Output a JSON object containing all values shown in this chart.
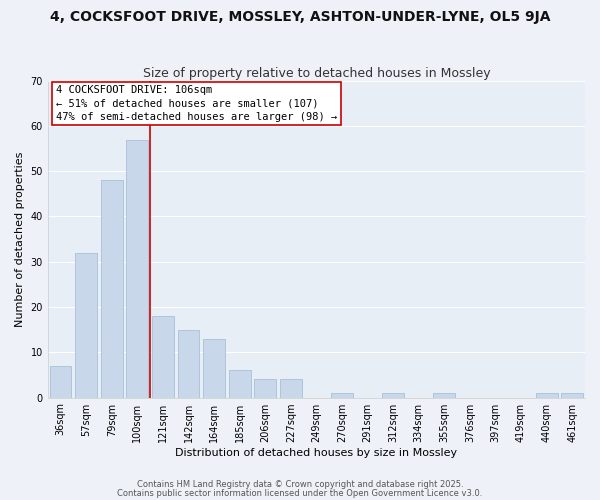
{
  "title": "4, COCKSFOOT DRIVE, MOSSLEY, ASHTON-UNDER-LYNE, OL5 9JA",
  "subtitle": "Size of property relative to detached houses in Mossley",
  "xlabel": "Distribution of detached houses by size in Mossley",
  "ylabel": "Number of detached properties",
  "bar_color": "#c8d8ea",
  "bar_edge_color": "#a8c0d8",
  "categories": [
    "36sqm",
    "57sqm",
    "79sqm",
    "100sqm",
    "121sqm",
    "142sqm",
    "164sqm",
    "185sqm",
    "206sqm",
    "227sqm",
    "249sqm",
    "270sqm",
    "291sqm",
    "312sqm",
    "334sqm",
    "355sqm",
    "376sqm",
    "397sqm",
    "419sqm",
    "440sqm",
    "461sqm"
  ],
  "values": [
    7,
    32,
    48,
    57,
    18,
    15,
    13,
    6,
    4,
    4,
    0,
    1,
    0,
    1,
    0,
    1,
    0,
    0,
    0,
    1,
    1
  ],
  "ylim": [
    0,
    70
  ],
  "yticks": [
    0,
    10,
    20,
    30,
    40,
    50,
    60,
    70
  ],
  "vline_color": "#cc0000",
  "vline_x_index": 3,
  "annotation_title": "4 COCKSFOOT DRIVE: 106sqm",
  "annotation_line1": "← 51% of detached houses are smaller (107)",
  "annotation_line2": "47% of semi-detached houses are larger (98) →",
  "annotation_box_color": "#ffffff",
  "annotation_box_edge": "#cc0000",
  "footer1": "Contains HM Land Registry data © Crown copyright and database right 2025.",
  "footer2": "Contains public sector information licensed under the Open Government Licence v3.0.",
  "background_color": "#eef2f8",
  "plot_bg_color": "#e8eef6",
  "grid_color": "#ffffff",
  "title_fontsize": 10,
  "subtitle_fontsize": 9,
  "axis_label_fontsize": 8,
  "tick_fontsize": 7,
  "annotation_fontsize": 7.5,
  "footer_fontsize": 6
}
